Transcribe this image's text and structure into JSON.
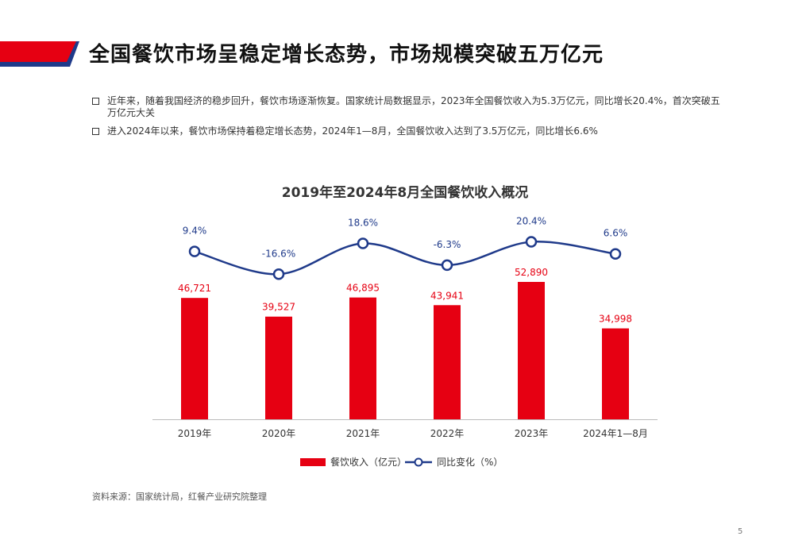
{
  "header": {
    "title": "全国餐饮市场呈稳定增长态势，市场规模突破五万亿元"
  },
  "bullets": [
    "近年来，随着我国经济的稳步回升，餐饮市场逐渐恢复。国家统计局数据显示，2023年全国餐饮收入为5.3万亿元，同比增长20.4%，首次突破五万亿元大关",
    "进入2024年以来，餐饮市场保持着稳定增长态势，2024年1—8月，全国餐饮收入达到了3.5万亿元，同比增长6.6%"
  ],
  "chart_data": {
    "type": "bar",
    "title": "2019年至2024年8月全国餐饮收入概况",
    "categories": [
      "2019年",
      "2020年",
      "2021年",
      "2022年",
      "2023年",
      "2024年1—8月"
    ],
    "series": [
      {
        "name": "餐饮收入（亿元）",
        "type": "bar",
        "values": [
          46721,
          39527,
          46895,
          43941,
          52890,
          34998
        ],
        "labels": [
          "46,721",
          "39,527",
          "46,895",
          "43,941",
          "52,890",
          "34,998"
        ],
        "color": "#e60012"
      },
      {
        "name": "同比变化（%）",
        "type": "line",
        "values": [
          9.4,
          -16.6,
          18.6,
          -6.3,
          20.4,
          6.6
        ],
        "labels": [
          "9.4%",
          "-16.6%",
          "18.6%",
          "-6.3%",
          "20.4%",
          "6.6%"
        ],
        "color": "#1f3a8a"
      }
    ],
    "legend_position": "bottom",
    "grid": false
  },
  "footer": {
    "source": "资料来源：国家统计局，红餐产业研究院整理",
    "page_number": "5"
  },
  "colors": {
    "accent_red": "#e60012",
    "accent_blue": "#1f3a8a"
  }
}
